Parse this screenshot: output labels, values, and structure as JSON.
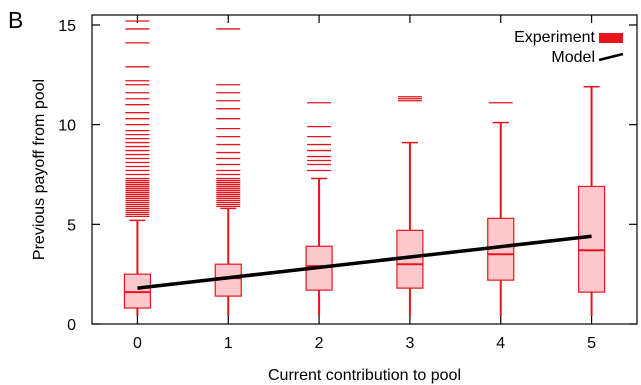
{
  "panel_label": "B",
  "chart_data": {
    "type": "box",
    "xlabel": "Current contribution to pool",
    "ylabel": "Previous payoff from pool",
    "xlim": [
      -0.5,
      5.5
    ],
    "ylim": [
      0,
      15.5
    ],
    "x_ticks": [
      0,
      1,
      2,
      3,
      4,
      5
    ],
    "y_ticks": [
      0,
      5,
      10,
      15
    ],
    "grid": false,
    "legend_position": "top-right",
    "colors": {
      "experiment": "#e8141c",
      "box_fill": "#ffc8cc",
      "model": "#000000"
    },
    "series": [
      {
        "name": "Experiment",
        "boxes": [
          {
            "x": 0,
            "whisker_low": 0.4,
            "q1": 0.8,
            "median": 1.6,
            "q3": 2.5,
            "whisker_high": 5.2,
            "outliers": [
              5.4,
              5.5,
              5.6,
              5.7,
              5.8,
              5.9,
              6.0,
              6.1,
              6.2,
              6.3,
              6.4,
              6.5,
              6.6,
              6.7,
              6.8,
              6.9,
              7.0,
              7.1,
              7.2,
              7.3,
              7.5,
              7.7,
              7.9,
              8.1,
              8.3,
              8.5,
              8.7,
              8.9,
              9.1,
              9.3,
              9.5,
              9.7,
              10.0,
              10.3,
              10.6,
              11.0,
              11.3,
              11.6,
              12.0,
              12.2,
              12.9,
              14.1,
              14.8,
              15.2
            ]
          },
          {
            "x": 1,
            "whisker_low": 0.4,
            "q1": 1.4,
            "median": 2.3,
            "q3": 3.0,
            "whisker_high": 5.8,
            "outliers": [
              5.9,
              6.0,
              6.1,
              6.2,
              6.3,
              6.4,
              6.5,
              6.6,
              6.7,
              6.8,
              6.9,
              7.0,
              7.1,
              7.2,
              7.3,
              7.5,
              7.7,
              8.0,
              8.3,
              8.6,
              9.0,
              9.4,
              9.8,
              10.3,
              10.8,
              11.2,
              11.6,
              12.0,
              14.8
            ]
          },
          {
            "x": 2,
            "whisker_low": 0.4,
            "q1": 1.7,
            "median": 2.9,
            "q3": 3.9,
            "whisker_high": 7.3,
            "outliers": [
              7.7,
              8.0,
              8.2,
              8.4,
              8.7,
              9.0,
              9.4,
              9.9,
              11.1
            ]
          },
          {
            "x": 3,
            "whisker_low": 0.4,
            "q1": 1.8,
            "median": 3.0,
            "q3": 4.7,
            "whisker_high": 9.1,
            "outliers": [
              11.2,
              11.3,
              11.4
            ]
          },
          {
            "x": 4,
            "whisker_low": 0.4,
            "q1": 2.2,
            "median": 3.5,
            "q3": 5.3,
            "whisker_high": 10.1,
            "outliers": [
              11.1
            ]
          },
          {
            "x": 5,
            "whisker_low": 0.4,
            "q1": 1.6,
            "median": 3.7,
            "q3": 6.9,
            "whisker_high": 11.9,
            "outliers": []
          }
        ]
      },
      {
        "name": "Model",
        "type": "line",
        "x": [
          0,
          5
        ],
        "y": [
          1.8,
          4.4
        ]
      }
    ]
  }
}
